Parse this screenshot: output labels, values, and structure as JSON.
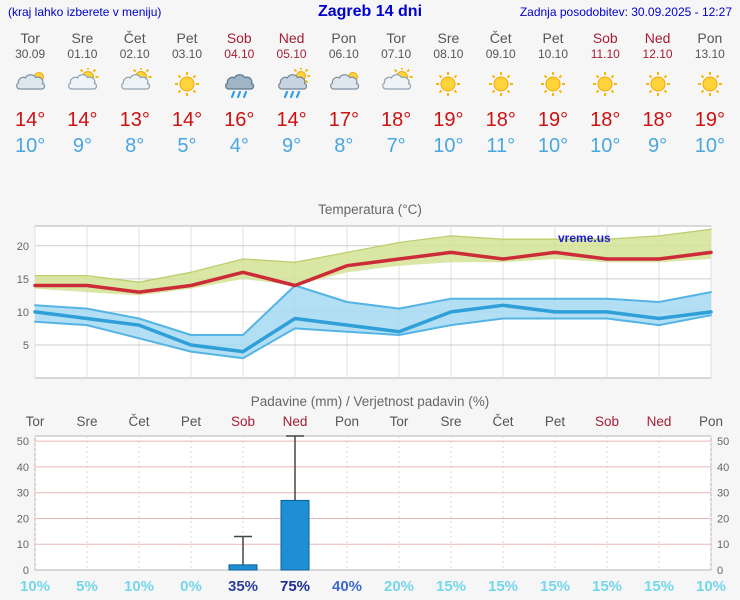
{
  "header": {
    "note": "(kraj lahko izberete v meniju)",
    "title": "Zagreb 14 dni",
    "updated": "Zadnja posodobitev: 30.09.2025 - 12:27"
  },
  "colors": {
    "accent_blue": "#0000cc",
    "tmax_red": "#cc1111",
    "tmin_blue": "#4aa7de",
    "weekend_red": "#a41e35",
    "day_gray": "#555555"
  },
  "days": [
    {
      "name": "Tor",
      "date": "30.09",
      "icon": "cloudy",
      "tmax": "14°",
      "tmin": "10°",
      "weekend": false
    },
    {
      "name": "Sre",
      "date": "01.10",
      "icon": "partly",
      "tmax": "14°",
      "tmin": "9°",
      "weekend": false
    },
    {
      "name": "Čet",
      "date": "02.10",
      "icon": "partly",
      "tmax": "13°",
      "tmin": "8°",
      "weekend": false
    },
    {
      "name": "Pet",
      "date": "03.10",
      "icon": "sunny",
      "tmax": "14°",
      "tmin": "5°",
      "weekend": false
    },
    {
      "name": "Sob",
      "date": "04.10",
      "icon": "rain",
      "tmax": "16°",
      "tmin": "4°",
      "weekend": true
    },
    {
      "name": "Ned",
      "date": "05.10",
      "icon": "rain-sun",
      "tmax": "14°",
      "tmin": "9°",
      "weekend": true
    },
    {
      "name": "Pon",
      "date": "06.10",
      "icon": "cloudy",
      "tmax": "17°",
      "tmin": "8°",
      "weekend": false
    },
    {
      "name": "Tor",
      "date": "07.10",
      "icon": "partly",
      "tmax": "18°",
      "tmin": "7°",
      "weekend": false
    },
    {
      "name": "Sre",
      "date": "08.10",
      "icon": "sunny",
      "tmax": "19°",
      "tmin": "10°",
      "weekend": false
    },
    {
      "name": "Čet",
      "date": "09.10",
      "icon": "sunny",
      "tmax": "18°",
      "tmin": "11°",
      "weekend": false
    },
    {
      "name": "Pet",
      "date": "10.10",
      "icon": "sunny",
      "tmax": "19°",
      "tmin": "10°",
      "weekend": false
    },
    {
      "name": "Sob",
      "date": "11.10",
      "icon": "sunny",
      "tmax": "18°",
      "tmin": "10°",
      "weekend": true
    },
    {
      "name": "Ned",
      "date": "12.10",
      "icon": "sunny",
      "tmax": "18°",
      "tmin": "9°",
      "weekend": true
    },
    {
      "name": "Pon",
      "date": "13.10",
      "icon": "sunny",
      "tmax": "19°",
      "tmin": "10°",
      "weekend": false
    }
  ],
  "chart_data": [
    {
      "type": "line",
      "title": "Temperatura (°C)",
      "watermark": "vreme.us",
      "x": [
        "30.09",
        "01.10",
        "02.10",
        "03.10",
        "04.10",
        "05.10",
        "06.10",
        "07.10",
        "08.10",
        "09.10",
        "10.10",
        "11.10",
        "12.10",
        "13.10"
      ],
      "ylim": [
        0,
        23
      ],
      "yticks": [
        5,
        10,
        15,
        20
      ],
      "series": [
        {
          "name": "max",
          "color": "#cc2b38",
          "values": [
            14,
            14,
            13,
            14,
            16,
            14,
            17,
            18,
            19,
            18,
            19,
            18,
            18,
            19
          ]
        },
        {
          "name": "max_range_high",
          "values": [
            15.5,
            15.5,
            14.5,
            16,
            18,
            17.5,
            19,
            20.5,
            21.5,
            21,
            21,
            21,
            21.5,
            22.5
          ]
        },
        {
          "name": "max_range_low",
          "values": [
            13.5,
            13,
            12.5,
            13.5,
            15,
            14,
            16,
            17,
            17.5,
            17.5,
            18,
            17.5,
            17.5,
            18
          ]
        },
        {
          "name": "min",
          "color": "#2f9fd8",
          "values": [
            10,
            9,
            8,
            5,
            4,
            9,
            8,
            7,
            10,
            11,
            10,
            10,
            9,
            10
          ]
        },
        {
          "name": "min_range_high",
          "values": [
            11,
            10.5,
            9,
            6.5,
            6.5,
            14,
            11.5,
            10.5,
            12,
            12,
            12,
            12,
            11.5,
            13
          ]
        },
        {
          "name": "min_range_low",
          "values": [
            8.5,
            8,
            6,
            4,
            3,
            7.5,
            7,
            6.5,
            8,
            9,
            9,
            9,
            8,
            9.5
          ]
        }
      ],
      "band_colors": {
        "max": "#d4e394",
        "min": "#a4d9f2"
      },
      "grid": true,
      "legend": "none"
    },
    {
      "type": "bar",
      "title": "Padavine (mm) / Verjetnost padavin (%)",
      "categories": [
        "Tor",
        "Sre",
        "Čet",
        "Pet",
        "Sob",
        "Ned",
        "Pon",
        "Tor",
        "Sre",
        "Čet",
        "Pet",
        "Sob",
        "Ned",
        "Pon"
      ],
      "weekend": [
        false,
        false,
        false,
        false,
        true,
        true,
        false,
        false,
        false,
        false,
        false,
        true,
        true,
        false
      ],
      "precip_mm": [
        0,
        0,
        0,
        0,
        2,
        27,
        0,
        0,
        0,
        0,
        0,
        0,
        0,
        0
      ],
      "precip_max_mm": [
        0,
        0,
        0,
        0,
        13,
        52,
        0,
        0,
        0,
        0,
        0,
        0,
        0,
        0
      ],
      "probability_pct": [
        "10%",
        "5%",
        "10%",
        "0%",
        "35%",
        "75%",
        "40%",
        "20%",
        "15%",
        "15%",
        "15%",
        "15%",
        "15%",
        "10%"
      ],
      "probability_colors": [
        "#74d6e9",
        "#74d6e9",
        "#74d6e9",
        "#74d6e9",
        "#2c3e9c",
        "#1e2d96",
        "#3e68cc",
        "#74d6e9",
        "#74d6e9",
        "#74d6e9",
        "#74d6e9",
        "#74d6e9",
        "#74d6e9",
        "#74d6e9"
      ],
      "ylim": [
        0,
        52
      ],
      "yticks": [
        0,
        10,
        20,
        30,
        40,
        50
      ],
      "bar_color": "#1e8fd5",
      "grid": true
    }
  ]
}
